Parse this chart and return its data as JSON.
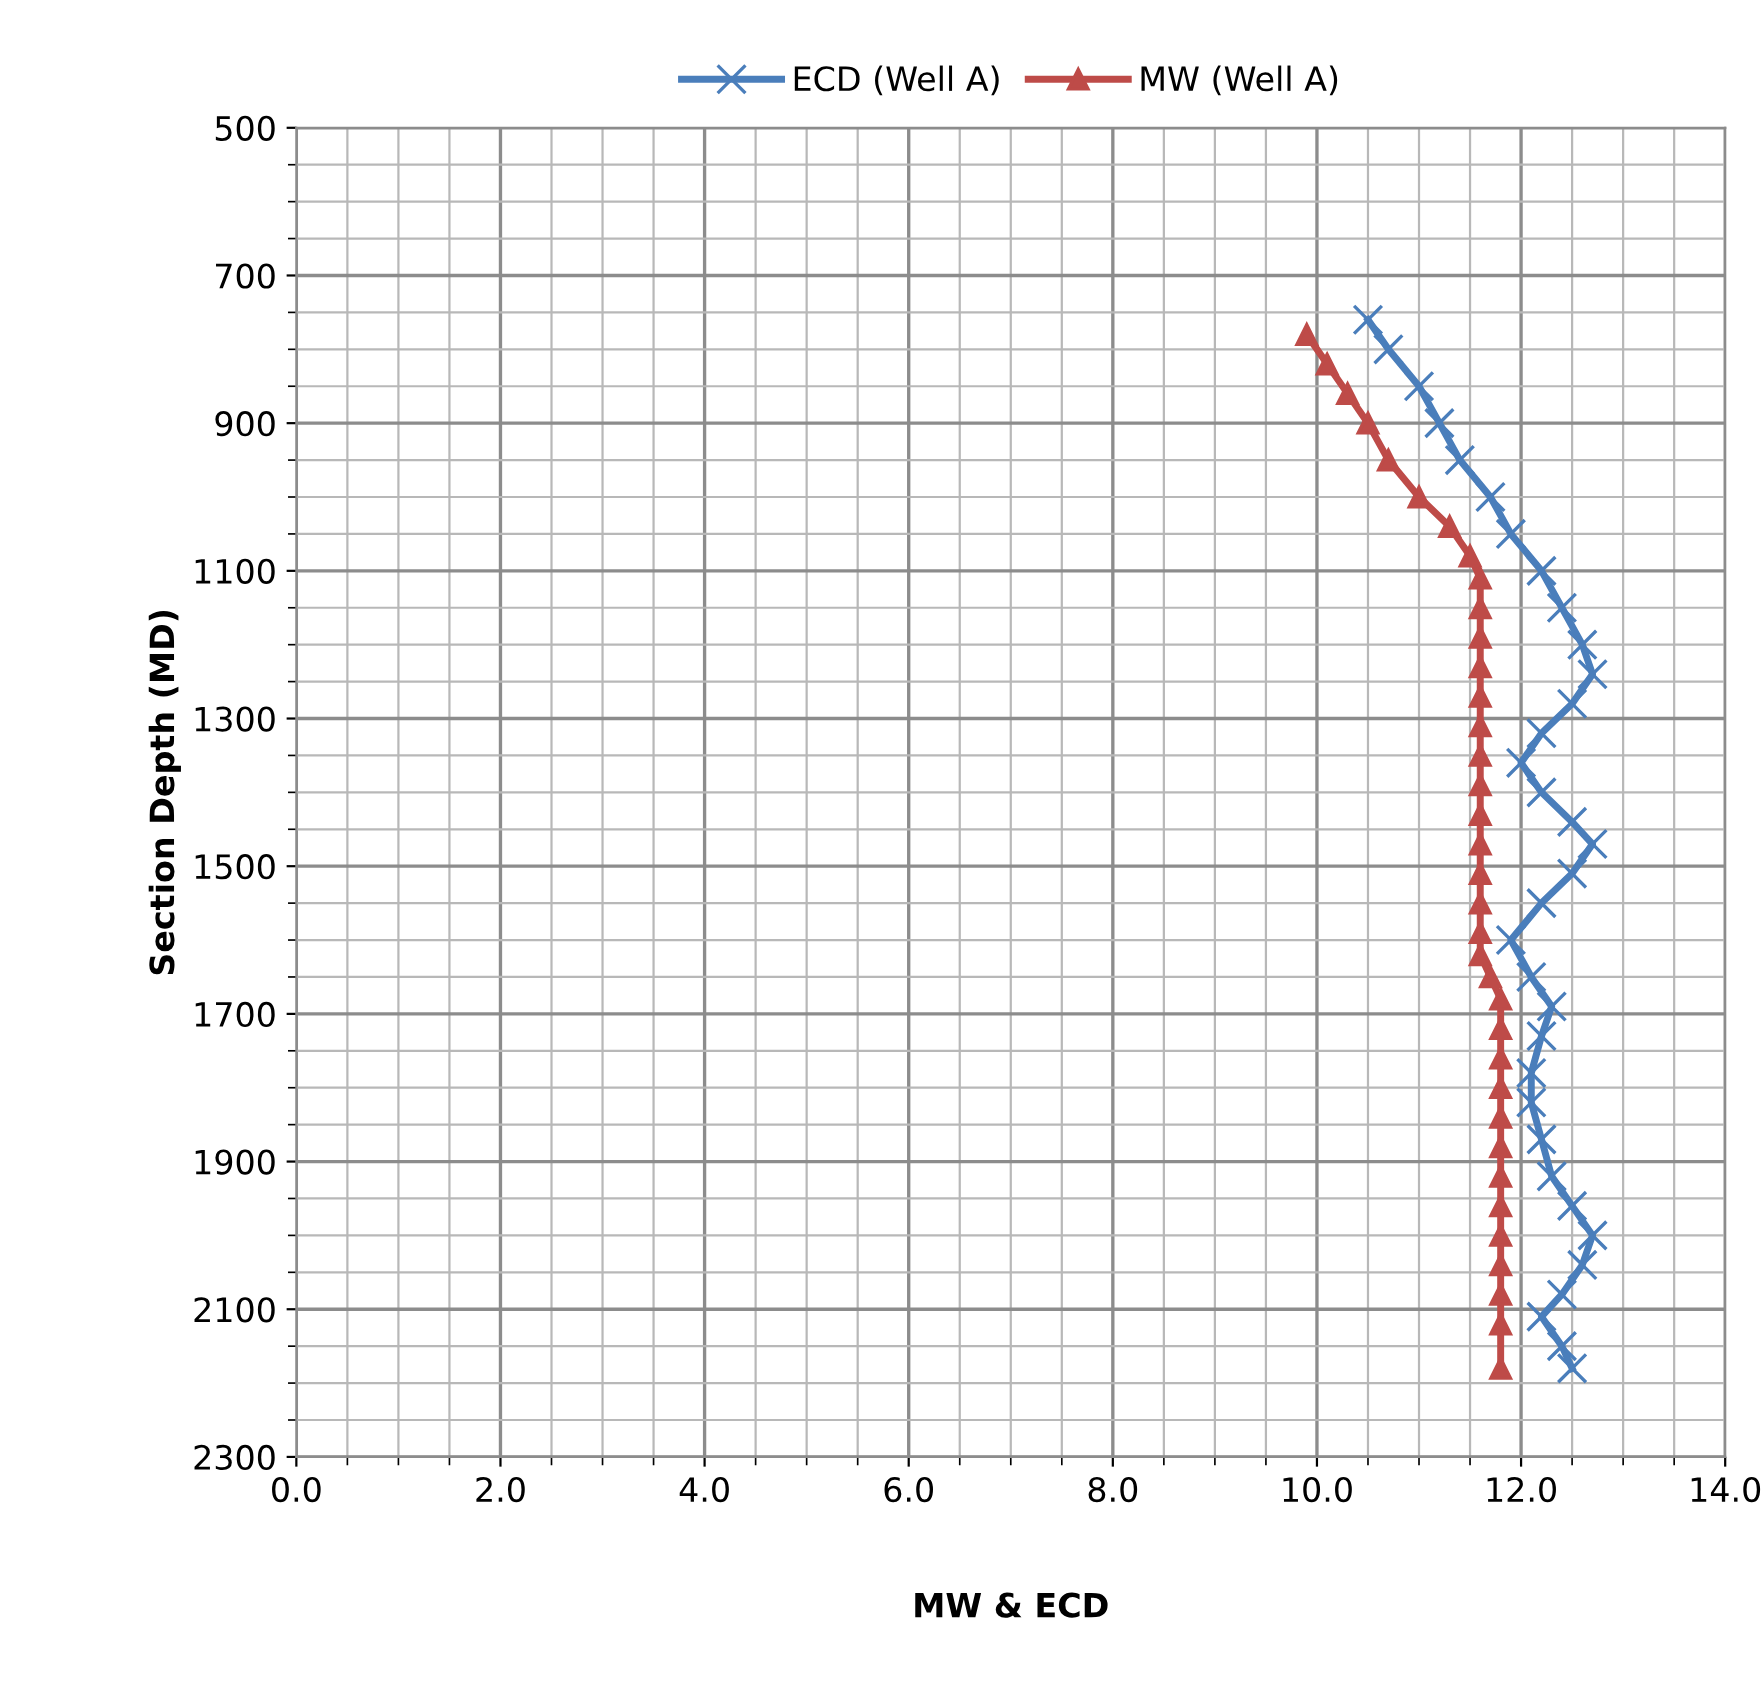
{
  "chart_data": {
    "type": "line",
    "xlabel": "MW & ECD",
    "ylabel": "Section Depth (MD)",
    "xlim": [
      0,
      14
    ],
    "xticks": [
      {
        "value": 0,
        "label": "0.0"
      },
      {
        "value": 2,
        "label": "2.0"
      },
      {
        "value": 4,
        "label": "4.0"
      },
      {
        "value": 6,
        "label": "6.0"
      },
      {
        "value": 8,
        "label": "8.0"
      },
      {
        "value": 10,
        "label": "10.0"
      },
      {
        "value": 12,
        "label": "12.0"
      },
      {
        "value": 14,
        "label": "14.0"
      }
    ],
    "ylim": [
      2300,
      500
    ],
    "yticks": [
      500,
      700,
      900,
      1100,
      1300,
      1500,
      1700,
      1900,
      2100,
      2300
    ],
    "grid": true,
    "legend": "top",
    "line_style": "solid",
    "series": [
      {
        "name": "ECD (Well A)",
        "color": "#4a7ebb",
        "marker": "cross",
        "x": [
          10.5,
          10.7,
          11.0,
          11.2,
          11.4,
          11.7,
          11.9,
          12.2,
          12.4,
          12.6,
          12.7,
          12.5,
          12.2,
          12.0,
          12.2,
          12.5,
          12.7,
          12.5,
          12.2,
          11.9,
          12.1,
          12.3,
          12.2,
          12.1,
          12.1,
          12.2,
          12.3,
          12.5,
          12.7,
          12.6,
          12.4,
          12.2,
          12.4,
          12.5
        ],
        "values": [
          760,
          800,
          850,
          900,
          950,
          1000,
          1050,
          1100,
          1150,
          1200,
          1240,
          1280,
          1320,
          1360,
          1400,
          1440,
          1470,
          1510,
          1550,
          1600,
          1650,
          1690,
          1730,
          1780,
          1820,
          1870,
          1920,
          1960,
          2000,
          2040,
          2080,
          2110,
          2150,
          2180
        ]
      },
      {
        "name": "MW (Well A)",
        "color": "#be4b48",
        "marker": "triangle",
        "x": [
          9.9,
          10.1,
          10.3,
          10.5,
          10.7,
          11.0,
          11.3,
          11.5,
          11.6,
          11.6,
          11.6,
          11.6,
          11.6,
          11.6,
          11.6,
          11.6,
          11.6,
          11.6,
          11.6,
          11.6,
          11.6,
          11.6,
          11.7,
          11.8,
          11.8,
          11.8,
          11.8,
          11.8,
          11.8,
          11.8,
          11.8,
          11.8,
          11.8,
          11.8,
          11.8,
          11.8
        ],
        "values": [
          780,
          820,
          860,
          900,
          950,
          1000,
          1040,
          1080,
          1110,
          1150,
          1190,
          1230,
          1270,
          1310,
          1350,
          1390,
          1430,
          1470,
          1510,
          1550,
          1590,
          1620,
          1650,
          1680,
          1720,
          1760,
          1800,
          1840,
          1880,
          1920,
          1960,
          2000,
          2040,
          2080,
          2120,
          2180
        ]
      }
    ]
  }
}
